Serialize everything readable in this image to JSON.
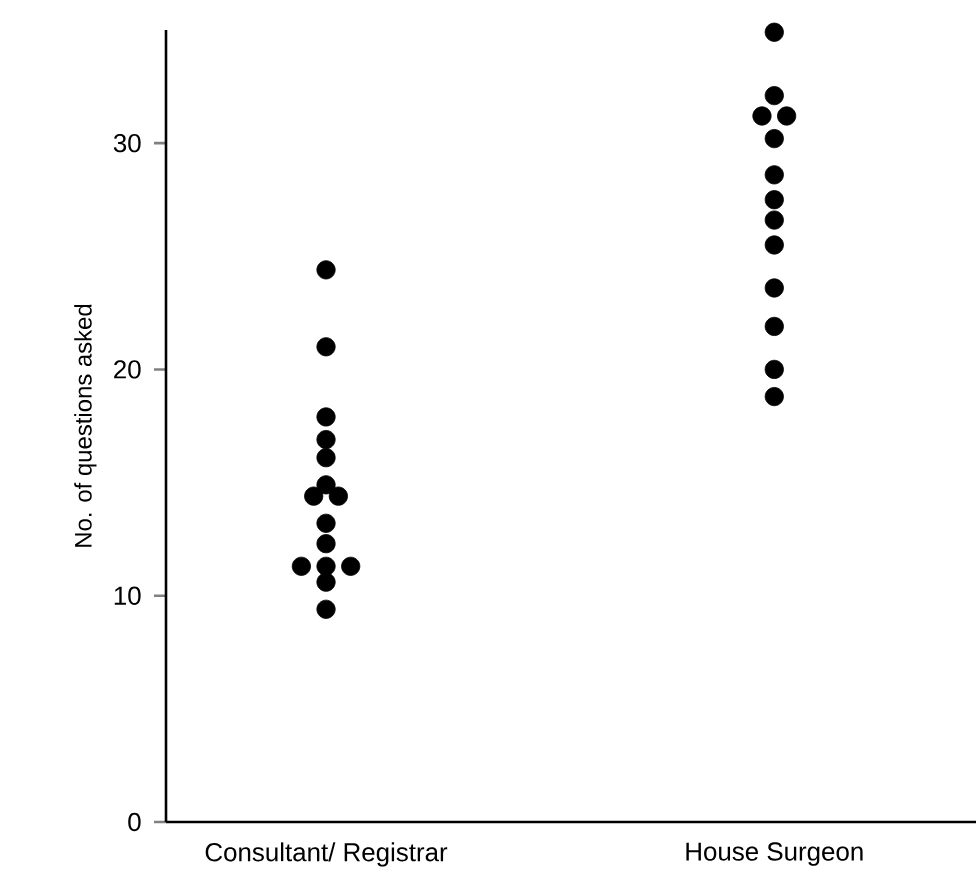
{
  "chart_data": {
    "type": "scatter",
    "ylabel": "No. of questions asked",
    "categories": [
      "Consultant/ Registrar",
      "House Surgeon"
    ],
    "series": [
      {
        "color": "#000000",
        "x": [
          "Consultant/ Registrar",
          "Consultant/ Registrar",
          "Consultant/ Registrar",
          "Consultant/ Registrar",
          "Consultant/ Registrar",
          "Consultant/ Registrar",
          "Consultant/ Registrar",
          "Consultant/ Registrar",
          "Consultant/ Registrar",
          "Consultant/ Registrar",
          "Consultant/ Registrar",
          "Consultant/ Registrar",
          "Consultant/ Registrar",
          "Consultant/ Registrar",
          "Consultant/ Registrar"
        ],
        "values": [
          24.4,
          21.0,
          17.9,
          16.9,
          16.1,
          14.9,
          14.4,
          14.4,
          13.2,
          12.3,
          11.3,
          11.3,
          11.3,
          10.6,
          9.4
        ]
      },
      {
        "color": "#000000",
        "x": [
          "House Surgeon",
          "House Surgeon",
          "House Surgeon",
          "House Surgeon",
          "House Surgeon",
          "House Surgeon",
          "House Surgeon",
          "House Surgeon",
          "House Surgeon",
          "House Surgeon",
          "House Surgeon",
          "House Surgeon",
          "House Surgeon"
        ],
        "values": [
          34.9,
          32.1,
          31.2,
          31.2,
          30.2,
          28.6,
          27.5,
          26.6,
          25.5,
          23.6,
          21.9,
          20.0,
          18.8
        ]
      }
    ],
    "ylim": [
      0,
      35
    ],
    "yticks": [
      0,
      10,
      20,
      30
    ]
  }
}
